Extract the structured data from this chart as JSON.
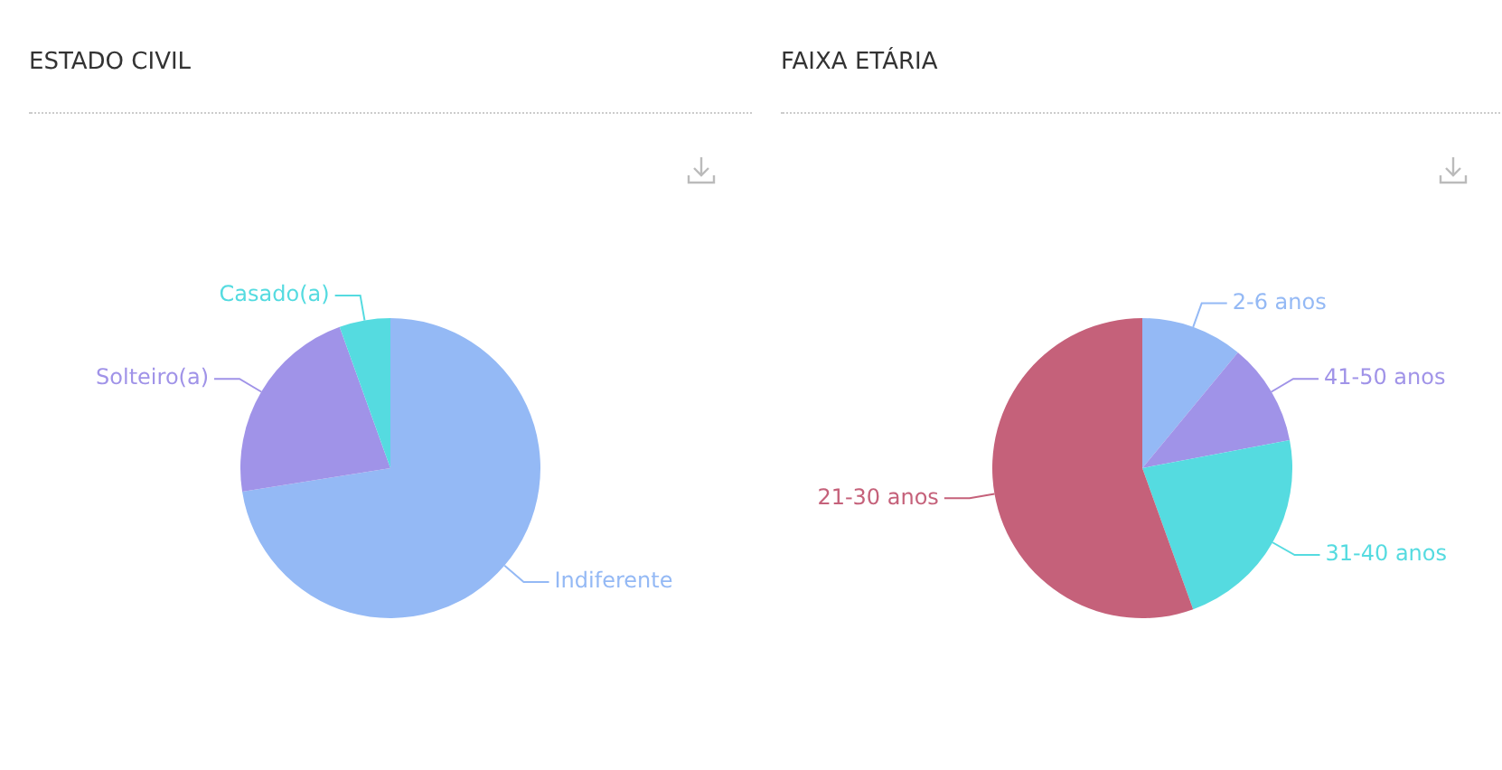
{
  "chart_data": [
    {
      "type": "pie",
      "title": "ESTADO CIVIL",
      "categories": [
        "Indiferente",
        "Solteiro(a)",
        "Casado(a)"
      ],
      "values": [
        72.5,
        22,
        5.5
      ],
      "colors": [
        "#94b9f5",
        "#a093e8",
        "#55dbe0"
      ]
    },
    {
      "type": "pie",
      "title": "FAIXA ETÁRIA",
      "categories": [
        "2-6 anos",
        "41-50 anos",
        "31-40 anos",
        "21-30 anos"
      ],
      "values": [
        11,
        11,
        22.5,
        55.5
      ],
      "colors": [
        "#94b9f5",
        "#a093e8",
        "#55dbe0",
        "#c5617a"
      ]
    }
  ]
}
